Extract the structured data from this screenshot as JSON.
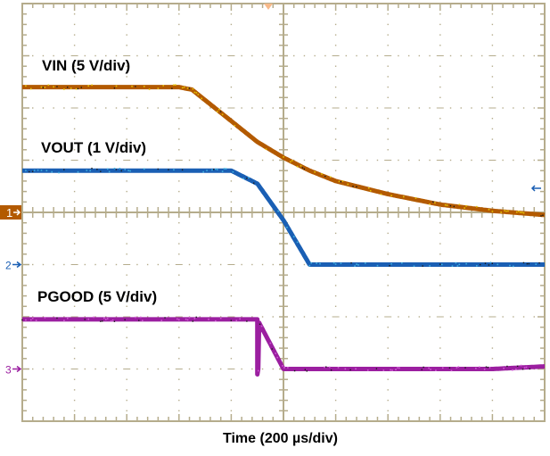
{
  "chart_data": {
    "type": "line",
    "title": "",
    "xlabel": "Time (200 µs/div)",
    "ylabel": "",
    "grid": true,
    "divisions": {
      "x": 10,
      "y": 8
    },
    "time_per_div_us": 200,
    "x_unit": "div",
    "x": [
      0,
      1,
      2,
      3,
      3.25,
      4,
      4.5,
      5,
      5.5,
      6,
      7,
      8,
      9,
      10
    ],
    "series": [
      {
        "name": "VIN (5 V/div)",
        "channel": 1,
        "color": "#b35a00",
        "scale": "5 V/div",
        "ground_div": 4.0,
        "values_div": [
          6.4,
          6.4,
          6.4,
          6.4,
          6.35,
          5.75,
          5.35,
          5.05,
          4.8,
          4.6,
          4.35,
          4.15,
          4.03,
          3.95
        ]
      },
      {
        "name": "VOUT (1 V/div)",
        "channel": 2,
        "color": "#1a5fb4",
        "scale": "1 V/div",
        "ground_div": 3.0,
        "values_div": [
          4.8,
          4.8,
          4.8,
          4.8,
          4.8,
          4.8,
          4.55,
          3.85,
          3.0,
          3.0,
          3.0,
          3.0,
          3.0,
          3.0
        ]
      },
      {
        "name": "PGOOD (5 V/div)",
        "channel": 3,
        "color": "#9b1fa0",
        "scale": "5 V/div",
        "ground_div": 1.0,
        "values_div": [
          1.95,
          1.95,
          1.95,
          1.95,
          1.95,
          1.95,
          1.95,
          1.0,
          1.0,
          1.0,
          1.0,
          1.0,
          1.0,
          1.05
        ]
      }
    ],
    "annotations": [
      "VIN (5 V/div)",
      "VOUT (1 V/div)",
      "PGOOD (5 V/div)"
    ],
    "channel_markers": [
      "1",
      "2",
      "3"
    ],
    "legend_position": "inline"
  },
  "labels": {
    "vin": "VIN (5 V/div)",
    "vout": "VOUT (1 V/div)",
    "pgood": "PGOOD (5 V/div)",
    "xaxis": "Time (200 µs/div)"
  },
  "markers": {
    "ch1": "1",
    "ch2": "2",
    "ch3": "3"
  },
  "colors": {
    "grid": "#b5ac8c",
    "vin": "#b35a00",
    "vin_noise": "#e6c200",
    "vout": "#1a5fb4",
    "vout_noise": "#3fb0e0",
    "pgood": "#9b1fa0",
    "trigger": "#f7b98a"
  }
}
